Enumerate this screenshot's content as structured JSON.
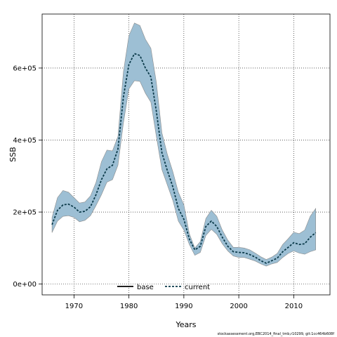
{
  "chart_data": {
    "type": "area",
    "title": "",
    "xlabel": "Years",
    "ylabel": "SSB",
    "xlim": [
      1964.2,
      2016.6
    ],
    "ylim": [
      -30000,
      750000
    ],
    "x_ticks": [
      1970,
      1980,
      1990,
      2000,
      2010
    ],
    "y_ticks": [
      0,
      200000,
      400000,
      600000
    ],
    "x_tick_labels": [
      "1970",
      "1980",
      "1990",
      "2000",
      "2010"
    ],
    "y_tick_labels": [
      "0e+00",
      "2e+05",
      "4e+05",
      "6e+05"
    ],
    "grid": true,
    "legend_position": "bottom-center",
    "colors": {
      "band_fill": "#9dbfd4",
      "band_stroke": "#8c8c8c",
      "current_line": "#0b3a4a",
      "base_line": "#000000"
    },
    "series": [
      {
        "name": "current",
        "style": "dashed",
        "x": [
          1966,
          1967,
          1968,
          1969,
          1970,
          1971,
          1972,
          1973,
          1974,
          1975,
          1976,
          1977,
          1978,
          1979,
          1980,
          1981,
          1982,
          1983,
          1984,
          1985,
          1986,
          1987,
          1988,
          1989,
          1990,
          1991,
          1992,
          1993,
          1994,
          1995,
          1996,
          1997,
          1998,
          1999,
          2000,
          2001,
          2002,
          2003,
          2004,
          2005,
          2006,
          2007,
          2008,
          2009,
          2010,
          2011,
          2012,
          2013,
          2014
        ],
        "values": [
          165000,
          205000,
          220000,
          222000,
          214000,
          200000,
          202000,
          215000,
          248000,
          290000,
          320000,
          330000,
          375000,
          520000,
          610000,
          640000,
          635000,
          600000,
          575000,
          480000,
          365000,
          315000,
          270000,
          210000,
          180000,
          125000,
          95000,
          105000,
          160000,
          175000,
          160000,
          130000,
          105000,
          90000,
          88000,
          87000,
          82000,
          75000,
          65000,
          58000,
          65000,
          72000,
          90000,
          102000,
          115000,
          110000,
          112000,
          130000,
          143000
        ]
      },
      {
        "name": "base",
        "style": "solid",
        "x": [],
        "values": []
      }
    ],
    "band": {
      "upper": [
        185000,
        240000,
        260000,
        255000,
        240000,
        225000,
        228000,
        245000,
        282000,
        340000,
        372000,
        370000,
        410000,
        590000,
        690000,
        725000,
        718000,
        680000,
        655000,
        560000,
        420000,
        360000,
        312000,
        255000,
        220000,
        140000,
        100000,
        118000,
        182000,
        205000,
        188000,
        150000,
        122000,
        102000,
        102000,
        100000,
        95000,
        86000,
        76000,
        68000,
        75000,
        85000,
        110000,
        126000,
        144000,
        140000,
        150000,
        188000,
        210000
      ],
      "lower": [
        143000,
        175000,
        188000,
        190000,
        185000,
        173000,
        177000,
        190000,
        218000,
        248000,
        283000,
        290000,
        330000,
        448000,
        542000,
        565000,
        563000,
        530000,
        505000,
        410000,
        318000,
        275000,
        232000,
        175000,
        150000,
        110000,
        80000,
        88000,
        135000,
        152000,
        138000,
        112000,
        92000,
        78000,
        74000,
        74000,
        69000,
        64000,
        56000,
        50000,
        56000,
        60000,
        74000,
        85000,
        92000,
        86000,
        83000,
        90000,
        95000
      ]
    },
    "legend": [
      {
        "label": "base",
        "style": "solid"
      },
      {
        "label": "current",
        "style": "dashed"
      }
    ]
  },
  "footnote": "stockassessment.org,EBC2014_final_tmb,r10299, git:1cc464b608f"
}
